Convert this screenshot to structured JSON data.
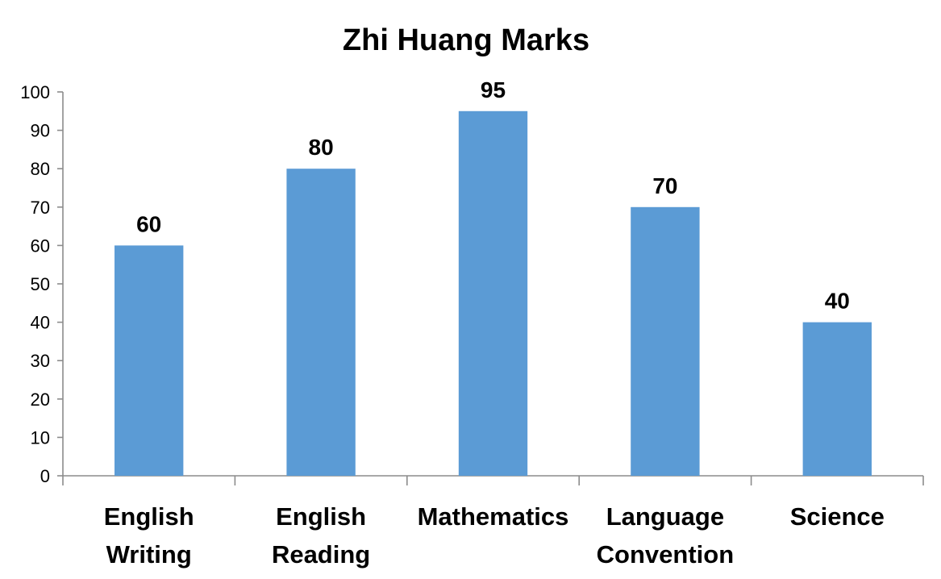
{
  "chart_data": {
    "type": "bar",
    "title": "Zhi Huang Marks",
    "categories": [
      [
        "English",
        "Writing"
      ],
      [
        "English",
        "Reading"
      ],
      [
        "Mathematics"
      ],
      [
        "Language",
        "Convention"
      ],
      [
        "Science"
      ]
    ],
    "values": [
      60,
      80,
      95,
      70,
      40
    ],
    "data_labels": [
      "60",
      "80",
      "95",
      "70",
      "40"
    ],
    "xlabel": "",
    "ylabel": "",
    "ylim": [
      0,
      100
    ],
    "yticks": [
      "0",
      "10",
      "20",
      "30",
      "40",
      "50",
      "60",
      "70",
      "80",
      "90",
      "100"
    ],
    "grid": false,
    "legend": "none",
    "bar_color": "#5b9bd5"
  }
}
